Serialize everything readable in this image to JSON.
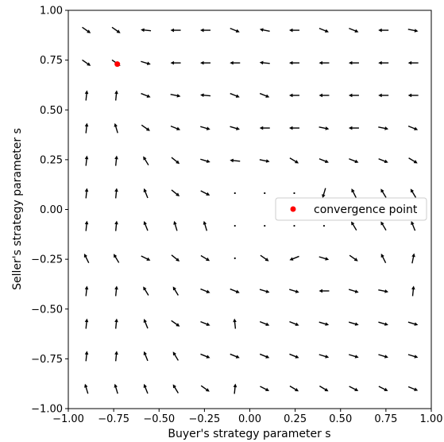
{
  "chart_data": {
    "type": "quiver",
    "xlabel": "Buyer's strategy parameter s",
    "ylabel": "Seller's strategy parameter s",
    "xlim": [
      -1.0,
      1.0
    ],
    "ylim": [
      -1.0,
      1.0
    ],
    "xticks": [
      -1.0,
      -0.75,
      -0.5,
      -0.25,
      0.0,
      0.25,
      0.5,
      0.75,
      1.0
    ],
    "yticks": [
      -1.0,
      -0.75,
      -0.5,
      -0.25,
      0.0,
      0.25,
      0.5,
      0.75,
      1.0
    ],
    "xtick_labels": [
      "−1.00",
      "−0.75",
      "−0.50",
      "−0.25",
      "0.00",
      "0.25",
      "0.50",
      "0.75",
      "1.00"
    ],
    "ytick_labels": [
      "−1.00",
      "−0.75",
      "−0.50",
      "−0.25",
      "0.00",
      "0.25",
      "0.50",
      "0.75",
      "1.00"
    ],
    "grid": false,
    "legend": {
      "placement": "right",
      "entries": [
        "convergence point"
      ]
    },
    "arrow_color": "#000000",
    "marker_color": "#ff0000",
    "convergence_point": {
      "x": -0.73,
      "y": 0.73
    },
    "x": [
      -0.9,
      -0.736,
      -0.573,
      -0.409,
      -0.245,
      -0.082,
      0.082,
      0.245,
      0.409,
      0.573,
      0.736,
      0.9
    ],
    "y": [
      0.9,
      0.736,
      0.573,
      0.409,
      0.245,
      0.082,
      -0.082,
      -0.245,
      -0.409,
      -0.573,
      -0.736,
      -0.9
    ],
    "vectors": [
      [
        [
          1,
          -0.7
        ],
        [
          1,
          -0.7
        ],
        [
          -1,
          0.1
        ],
        [
          -1,
          0
        ],
        [
          -1,
          0
        ],
        [
          1,
          -0.4
        ],
        [
          -1,
          0.2
        ],
        [
          -1,
          0
        ],
        [
          1,
          -0.4
        ],
        [
          1,
          -0.4
        ],
        [
          -1,
          0
        ],
        [
          1,
          -0.2
        ]
      ],
      [
        [
          1,
          -0.7
        ],
        [
          1,
          -0.7
        ],
        [
          1,
          -0.3
        ],
        [
          -1,
          0
        ],
        [
          -1,
          0
        ],
        [
          -1,
          0
        ],
        [
          -1,
          0.1
        ],
        [
          -1,
          0
        ],
        [
          -1,
          0
        ],
        [
          -1,
          0
        ],
        [
          -1,
          0
        ],
        [
          -1,
          0
        ]
      ],
      [
        [
          0.1,
          1
        ],
        [
          0.1,
          1
        ],
        [
          1,
          -0.4
        ],
        [
          1,
          -0.2
        ],
        [
          -1,
          0.1
        ],
        [
          1,
          -0.4
        ],
        [
          1,
          -0.4
        ],
        [
          -1,
          0
        ],
        [
          -1,
          0
        ],
        [
          -1,
          0
        ],
        [
          -1,
          0
        ],
        [
          -1,
          0
        ]
      ],
      [
        [
          0.1,
          1
        ],
        [
          -0.3,
          1
        ],
        [
          1,
          -0.7
        ],
        [
          1,
          -0.4
        ],
        [
          1,
          -0.3
        ],
        [
          1,
          -0.3
        ],
        [
          -1,
          0
        ],
        [
          -1,
          0
        ],
        [
          1,
          -0.2
        ],
        [
          -1,
          0
        ],
        [
          1,
          -0.2
        ],
        [
          1,
          -0.4
        ]
      ],
      [
        [
          0.1,
          1
        ],
        [
          0.1,
          1
        ],
        [
          -0.6,
          1
        ],
        [
          1,
          -0.8
        ],
        [
          1,
          -0.3
        ],
        [
          -1,
          0.1
        ],
        [
          1,
          -0.2
        ],
        [
          1,
          -0.6
        ],
        [
          1,
          -0.4
        ],
        [
          1,
          -0.4
        ],
        [
          1,
          -0.4
        ],
        [
          1,
          -0.6
        ]
      ],
      [
        [
          0.1,
          1
        ],
        [
          0.1,
          1
        ],
        [
          -0.4,
          1
        ],
        [
          1,
          -0.8
        ],
        [
          1,
          -0.5
        ],
        [
          0,
          0
        ],
        [
          0,
          0
        ],
        [
          0,
          0
        ],
        [
          -0.3,
          -1
        ],
        [
          -0.5,
          1
        ],
        [
          -0.6,
          1
        ],
        [
          -0.6,
          1
        ]
      ],
      [
        [
          0.1,
          1
        ],
        [
          0.1,
          1
        ],
        [
          -0.4,
          1
        ],
        [
          -0.3,
          1
        ],
        [
          -0.3,
          1
        ],
        [
          0,
          0
        ],
        [
          0,
          0
        ],
        [
          0,
          0
        ],
        [
          0,
          0
        ],
        [
          -0.6,
          1
        ],
        [
          -0.6,
          1
        ],
        [
          -0.4,
          1
        ]
      ],
      [
        [
          -0.5,
          1
        ],
        [
          -0.6,
          1
        ],
        [
          1,
          -0.5
        ],
        [
          1,
          -0.8
        ],
        [
          1,
          -0.6
        ],
        [
          0,
          0
        ],
        [
          1,
          -0.7
        ],
        [
          -1,
          -0.4
        ],
        [
          1,
          -0.3
        ],
        [
          1,
          -0.7
        ],
        [
          -0.5,
          1
        ],
        [
          0.2,
          1
        ]
      ],
      [
        [
          0.1,
          1
        ],
        [
          0.1,
          1
        ],
        [
          -0.6,
          1
        ],
        [
          -0.6,
          1
        ],
        [
          1,
          -0.4
        ],
        [
          1,
          -0.4
        ],
        [
          1,
          -0.3
        ],
        [
          1,
          -0.3
        ],
        [
          -1,
          0
        ],
        [
          1,
          -0.3
        ],
        [
          1,
          -0.2
        ],
        [
          0.1,
          1
        ]
      ],
      [
        [
          0.1,
          1
        ],
        [
          0.1,
          1
        ],
        [
          -0.4,
          1
        ],
        [
          1,
          -0.7
        ],
        [
          1,
          -0.4
        ],
        [
          -0.1,
          1
        ],
        [
          1,
          -0.4
        ],
        [
          1,
          -0.4
        ],
        [
          1,
          -0.3
        ],
        [
          1,
          -0.3
        ],
        [
          1,
          -0.3
        ],
        [
          1,
          -0.3
        ]
      ],
      [
        [
          0.1,
          1
        ],
        [
          0.1,
          1
        ],
        [
          -0.4,
          1
        ],
        [
          -0.6,
          1
        ],
        [
          1,
          -0.4
        ],
        [
          1,
          -0.4
        ],
        [
          1,
          -0.4
        ],
        [
          1,
          -0.4
        ],
        [
          1,
          -0.3
        ],
        [
          1,
          -0.3
        ],
        [
          1,
          -0.3
        ],
        [
          1,
          -0.3
        ]
      ],
      [
        [
          -0.3,
          1
        ],
        [
          -0.3,
          1
        ],
        [
          -0.4,
          1
        ],
        [
          -0.6,
          1
        ],
        [
          1,
          -0.7
        ],
        [
          0.1,
          1
        ],
        [
          1,
          -0.5
        ],
        [
          1,
          -0.6
        ],
        [
          1,
          -0.6
        ],
        [
          1,
          -0.5
        ],
        [
          1,
          -0.5
        ],
        [
          1,
          -0.4
        ]
      ]
    ]
  }
}
